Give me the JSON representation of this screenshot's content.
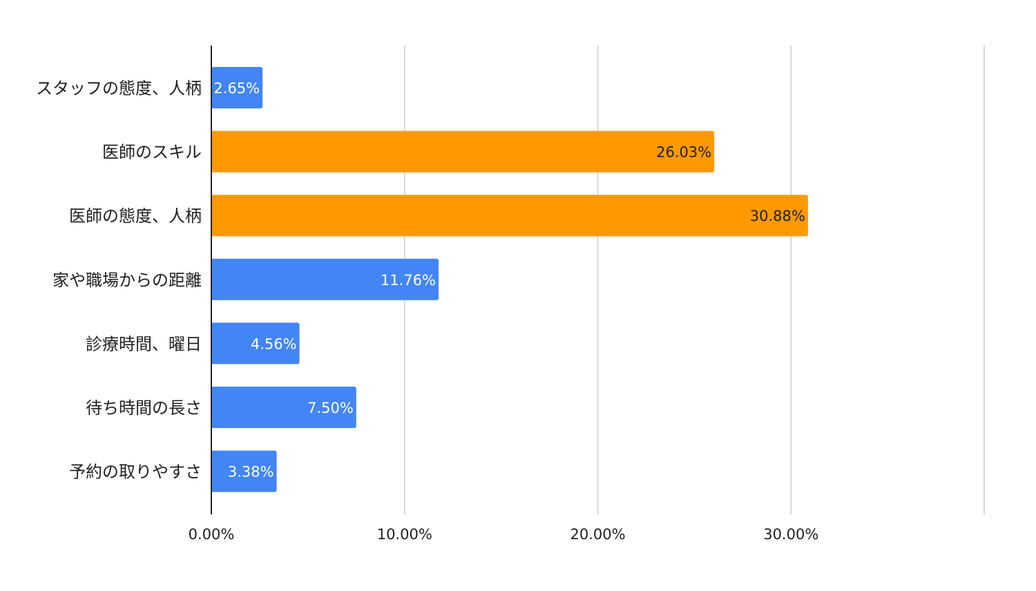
{
  "chart_data": {
    "type": "bar",
    "orientation": "horizontal",
    "title": "",
    "xlabel": "",
    "ylabel": "",
    "categories": [
      "スタッフの態度、人柄",
      "医師のスキル",
      "医師の態度、人柄",
      "家や職場からの距離",
      "診療時間、曜日",
      "待ち時間の長さ",
      "予約の取りやすさ"
    ],
    "values": [
      2.65,
      26.03,
      30.88,
      11.76,
      4.56,
      7.5,
      3.38
    ],
    "value_labels": [
      "2.65%",
      "26.03%",
      "30.88%",
      "11.76%",
      "4.56%",
      "7.50%",
      "3.38%"
    ],
    "bar_colors": [
      "#4285f4",
      "#ff9900",
      "#ff9900",
      "#4285f4",
      "#4285f4",
      "#4285f4",
      "#4285f4"
    ],
    "label_colors": [
      "#ffffff",
      "#202124",
      "#202124",
      "#ffffff",
      "#ffffff",
      "#ffffff",
      "#ffffff"
    ],
    "xlim": [
      0,
      40
    ],
    "ticks": [
      0,
      10,
      20,
      30,
      40
    ],
    "tick_labels": [
      "0.00%",
      "10.00%",
      "20.00%",
      "30.00%",
      ""
    ],
    "grid": true,
    "legend": "none"
  }
}
